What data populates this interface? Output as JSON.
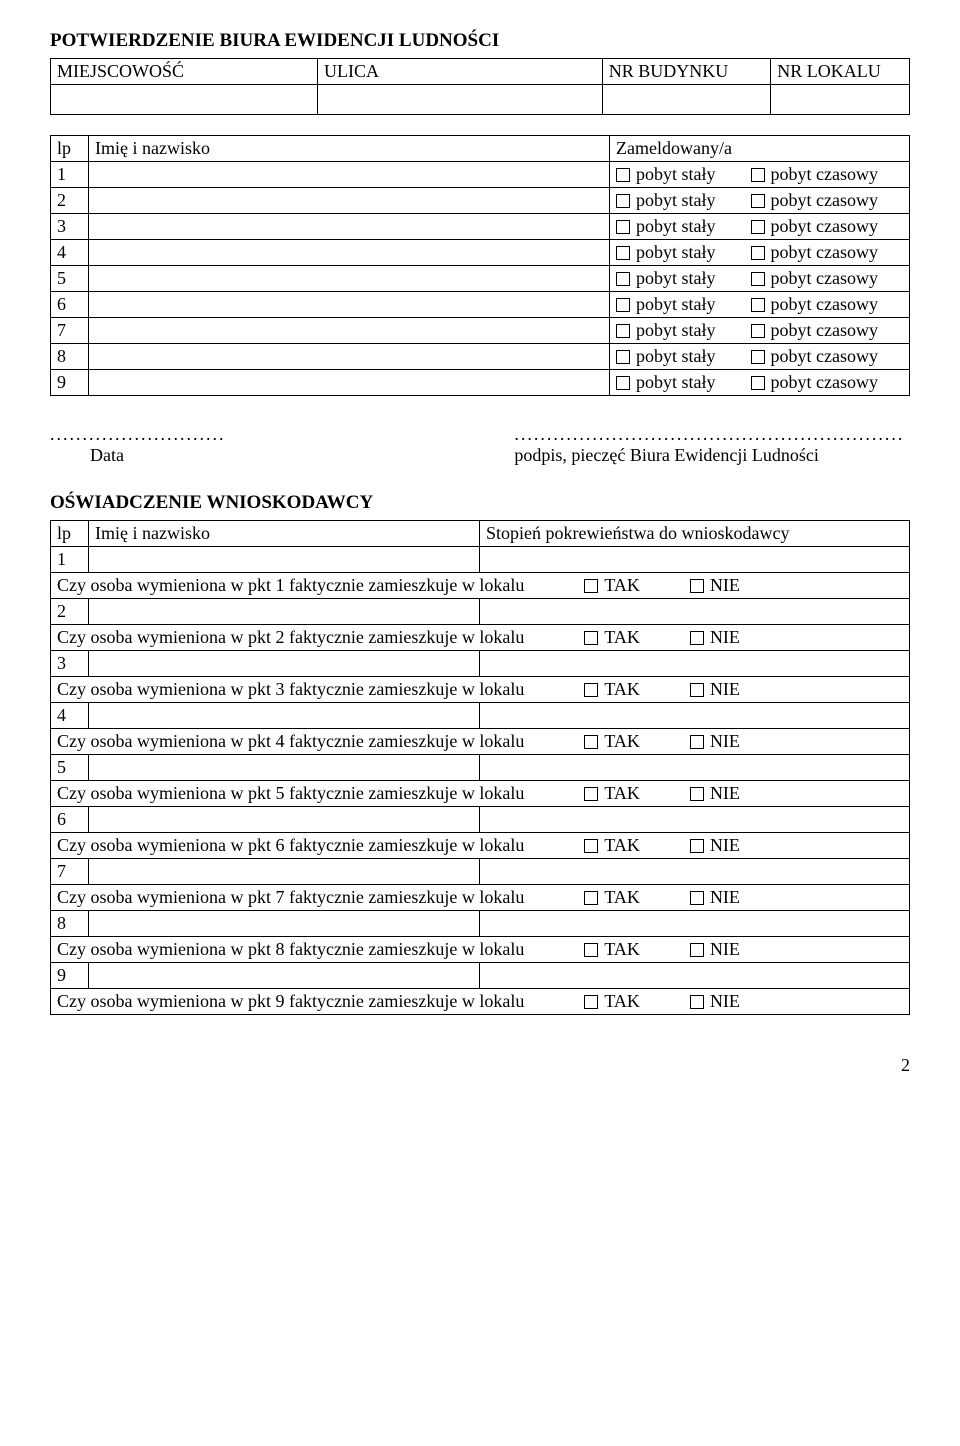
{
  "section1_title": "POTWIERDZENIE  BIURA  EWIDENCJI LUDNOŚCI",
  "addr": {
    "miejscowosc": "MIEJSCOWOŚĆ",
    "ulica": "ULICA",
    "nr_budynku": "NR BUDYNKU",
    "nr_lokalu": "NR LOKALU"
  },
  "residents": {
    "header_lp": "lp",
    "header_name": "Imię i nazwisko",
    "header_zam": "Zameldowany/a",
    "opt_staly": "pobyt stały",
    "opt_czasowy": "pobyt czasowy",
    "rows": [
      "1",
      "2",
      "3",
      "4",
      "5",
      "6",
      "7",
      "8",
      "9"
    ]
  },
  "sig": {
    "data_dots": "...........................",
    "data_label": "Data",
    "podpis_dots": "............................................................",
    "podpis_label": "podpis, pieczęć Biura Ewidencji Ludności"
  },
  "section2_title": "OŚWIADCZENIE WNIOSKODAWCY",
  "decl": {
    "header_lp": "lp",
    "header_name": "Imię i nazwisko",
    "header_stop": "Stopień pokrewieństwa do wnioskodawcy",
    "tak": "TAK",
    "nie": "NIE",
    "rows": [
      {
        "n": "1",
        "q": "Czy osoba wymieniona w pkt 1 faktycznie zamieszkuje w lokalu"
      },
      {
        "n": "2",
        "q": "Czy osoba wymieniona w pkt 2 faktycznie zamieszkuje w lokalu"
      },
      {
        "n": "3",
        "q": "Czy osoba wymieniona w pkt 3 faktycznie zamieszkuje w lokalu"
      },
      {
        "n": "4",
        "q": "Czy osoba wymieniona w pkt 4 faktycznie zamieszkuje w lokalu"
      },
      {
        "n": "5",
        "q": "Czy osoba wymieniona w pkt 5 faktycznie zamieszkuje w lokalu"
      },
      {
        "n": "6",
        "q": "Czy osoba wymieniona w pkt 6 faktycznie zamieszkuje w lokalu"
      },
      {
        "n": "7",
        "q": "Czy osoba wymieniona w pkt 7 faktycznie zamieszkuje w lokalu"
      },
      {
        "n": "8",
        "q": "Czy osoba wymieniona w pkt 8 faktycznie zamieszkuje w lokalu"
      },
      {
        "n": "9",
        "q": "Czy osoba wymieniona w pkt 9 faktycznie zamieszkuje w lokalu"
      }
    ]
  },
  "page_num": "2"
}
